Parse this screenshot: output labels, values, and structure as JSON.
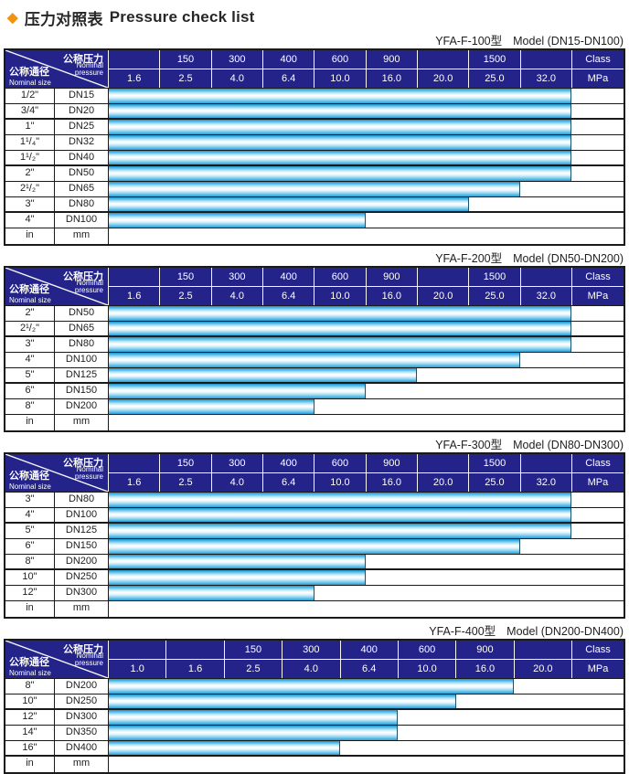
{
  "page": {
    "diamond_icon": "◆",
    "title_zh": "压力对照表",
    "title_en": "Pressure check list"
  },
  "header_labels": {
    "pressure_zh": "公称压力",
    "pressure_en_1": "Nominal",
    "pressure_en_2": "pressure",
    "size_zh": "公称通径",
    "size_en": "Nominal size"
  },
  "footer_units": {
    "inch": "in",
    "dn": "mm"
  },
  "colors": {
    "header_bg": "#23238a",
    "bar_blue": "#29a8e0",
    "diamond_orange": "#f2930f",
    "grid_line": "#1a1a1a"
  },
  "tables": [
    {
      "model": "YFA-F-100型",
      "range": "Model (DN15-DN100)",
      "class_row": [
        "",
        "150",
        "300",
        "400",
        "600",
        "900",
        "",
        "1500",
        "",
        "Class"
      ],
      "mpa_row": [
        "1.6",
        "2.5",
        "4.0",
        "6.4",
        "10.0",
        "16.0",
        "20.0",
        "25.0",
        "32.0",
        "MPa"
      ],
      "rows": [
        {
          "inch": "1/2\"",
          "dn": "DN15",
          "rating": "32.0"
        },
        {
          "inch": "3/4\"",
          "dn": "DN20",
          "rating": "32.0"
        },
        {
          "inch": "1\"",
          "dn": "DN25",
          "rating": "32.0"
        },
        {
          "inch": "1¹/₄\"",
          "dn": "DN32",
          "rating": "32.0"
        },
        {
          "inch": "1¹/₂\"",
          "dn": "DN40",
          "rating": "32.0"
        },
        {
          "inch": "2\"",
          "dn": "DN50",
          "rating": "32.0"
        },
        {
          "inch": "2¹/₂\"",
          "dn": "DN65",
          "rating": "25.0"
        },
        {
          "inch": "3\"",
          "dn": "DN80",
          "rating": "20.0"
        },
        {
          "inch": "4\"",
          "dn": "DN100",
          "rating": "10.0"
        }
      ]
    },
    {
      "model": "YFA-F-200型",
      "range": "Model (DN50-DN200)",
      "class_row": [
        "",
        "150",
        "300",
        "400",
        "600",
        "900",
        "",
        "1500",
        "",
        "Class"
      ],
      "mpa_row": [
        "1.6",
        "2.5",
        "4.0",
        "6.4",
        "10.0",
        "16.0",
        "20.0",
        "25.0",
        "32.0",
        "MPa"
      ],
      "rows": [
        {
          "inch": "2\"",
          "dn": "DN50",
          "rating": "32.0"
        },
        {
          "inch": "2¹/₂\"",
          "dn": "DN65",
          "rating": "32.0"
        },
        {
          "inch": "3\"",
          "dn": "DN80",
          "rating": "32.0"
        },
        {
          "inch": "4\"",
          "dn": "DN100",
          "rating": "25.0"
        },
        {
          "inch": "5\"",
          "dn": "DN125",
          "rating": "16.0"
        },
        {
          "inch": "6\"",
          "dn": "DN150",
          "rating": "10.0"
        },
        {
          "inch": "8\"",
          "dn": "DN200",
          "rating": "6.4"
        }
      ]
    },
    {
      "model": "YFA-F-300型",
      "range": "Model (DN80-DN300)",
      "class_row": [
        "",
        "150",
        "300",
        "400",
        "600",
        "900",
        "",
        "1500",
        "",
        "Class"
      ],
      "mpa_row": [
        "1.6",
        "2.5",
        "4.0",
        "6.4",
        "10.0",
        "16.0",
        "20.0",
        "25.0",
        "32.0",
        "MPa"
      ],
      "rows": [
        {
          "inch": "3\"",
          "dn": "DN80",
          "rating": "32.0"
        },
        {
          "inch": "4\"",
          "dn": "DN100",
          "rating": "32.0"
        },
        {
          "inch": "5\"",
          "dn": "DN125",
          "rating": "32.0"
        },
        {
          "inch": "6\"",
          "dn": "DN150",
          "rating": "25.0"
        },
        {
          "inch": "8\"",
          "dn": "DN200",
          "rating": "10.0"
        },
        {
          "inch": "10\"",
          "dn": "DN250",
          "rating": "10.0"
        },
        {
          "inch": "12\"",
          "dn": "DN300",
          "rating": "6.4"
        }
      ]
    },
    {
      "model": "YFA-F-400型",
      "range": "Model (DN200-DN400)",
      "class_row": [
        "",
        "",
        "150",
        "300",
        "400",
        "600",
        "900",
        "",
        "Class"
      ],
      "mpa_row": [
        "1.0",
        "1.6",
        "2.5",
        "4.0",
        "6.4",
        "10.0",
        "16.0",
        "20.0",
        "MPa"
      ],
      "rows": [
        {
          "inch": "8\"",
          "dn": "DN200",
          "rating": "16.0"
        },
        {
          "inch": "10\"",
          "dn": "DN250",
          "rating": "10.0"
        },
        {
          "inch": "12\"",
          "dn": "DN300",
          "rating": "6.4"
        },
        {
          "inch": "14\"",
          "dn": "DN350",
          "rating": "6.4"
        },
        {
          "inch": "16\"",
          "dn": "DN400",
          "rating": "4.0"
        }
      ]
    }
  ]
}
